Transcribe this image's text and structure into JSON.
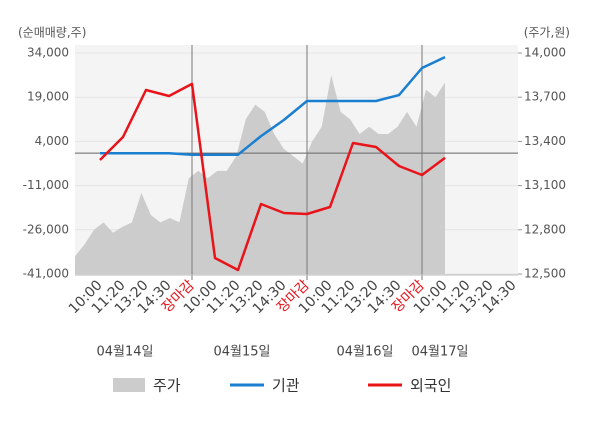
{
  "chart_data": {
    "type": "line",
    "y_label": "(순매매량,주)",
    "y2_label": "(주가,원)",
    "categories": [
      "10:00",
      "11:20",
      "13:20",
      "14:30",
      "장마감",
      "10:00",
      "11:20",
      "13:20",
      "14:30",
      "장마감",
      "10:00",
      "11:20",
      "13:20",
      "14:30",
      "장마감",
      "10:00",
      "11:20",
      "13:20",
      "14:30"
    ],
    "dates": [
      "04월14일",
      "04월15일",
      "04월16일",
      "04월17일"
    ],
    "ylim": [
      -41000,
      34000
    ],
    "yticks": [
      {
        "value": 34000,
        "label": "34,000"
      },
      {
        "value": 19000,
        "label": "19,000"
      },
      {
        "value": 4000,
        "label": "4,000"
      },
      {
        "value": -11000,
        "label": "-11,000"
      },
      {
        "value": -26000,
        "label": "-26,000"
      },
      {
        "value": -41000,
        "label": "-41,000"
      }
    ],
    "y2lim": [
      12500,
      14000
    ],
    "y2ticks": [
      {
        "value": 14000,
        "label": "14,000"
      },
      {
        "value": 13700,
        "label": "13,700"
      },
      {
        "value": 13400,
        "label": "13,400"
      },
      {
        "value": 13100,
        "label": "13,100"
      },
      {
        "value": 12800,
        "label": "12,800"
      },
      {
        "value": 12500,
        "label": "12,500"
      }
    ],
    "price": {
      "name": "주가",
      "color": "#cccccc",
      "axis": "y2",
      "values": [
        12620,
        12700,
        12800,
        12850,
        12780,
        12820,
        12850,
        13050,
        12900,
        12850,
        12880,
        12850,
        13150,
        13200,
        13150,
        13200,
        13200,
        13300,
        13550,
        13650,
        13600,
        13450,
        13350,
        13300,
        13250,
        13400,
        13500,
        13850,
        13600,
        13550,
        13450,
        13500,
        13450,
        13450,
        13500,
        13600,
        13500,
        13750,
        13700,
        13800
      ]
    },
    "series": [
      {
        "name": "기관",
        "color": "#1a7fd0",
        "values": [
          0,
          0,
          0,
          0,
          -500,
          -500,
          -500,
          5800,
          11300,
          17700,
          17700,
          17700,
          17700,
          19700,
          28900,
          32600,
          null,
          null,
          null
        ]
      },
      {
        "name": "외국인",
        "color": "#e8141a",
        "values": [
          -2300,
          5500,
          21450,
          19400,
          23500,
          -35570,
          -39640,
          -17240,
          -20300,
          -20640,
          -18260,
          3460,
          2100,
          -4350,
          -7400,
          -1600,
          null,
          null,
          null
        ]
      }
    ]
  }
}
